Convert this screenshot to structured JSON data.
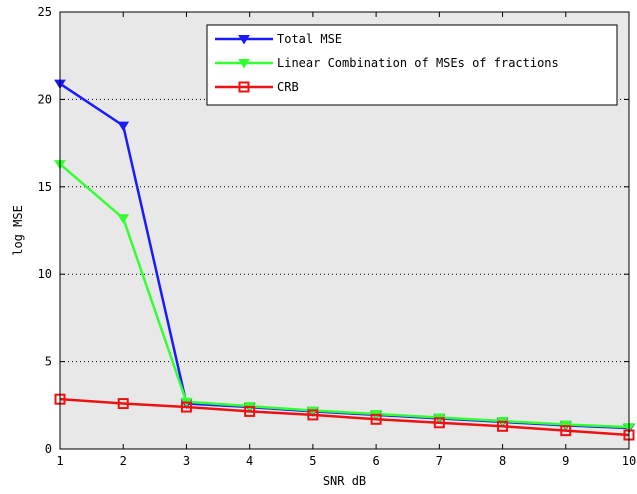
{
  "chart_data": {
    "type": "line",
    "title": "",
    "xlabel": "SNR dB",
    "ylabel": "log MSE",
    "xlim": [
      1,
      10
    ],
    "ylim": [
      0,
      25
    ],
    "xticks": [
      "1",
      "2",
      "3",
      "4",
      "5",
      "6",
      "7",
      "8",
      "9",
      "10"
    ],
    "yticks": [
      "0",
      "5",
      "10",
      "15",
      "20",
      "25"
    ],
    "grid": "horizontal-dotted",
    "legend_position": "top-right",
    "plot_background": "#e8e8e8",
    "x": [
      1,
      2,
      3,
      4,
      5,
      6,
      7,
      8,
      9,
      10
    ],
    "series": [
      {
        "name": "Total MSE",
        "color": "#1a1aff",
        "marker": "triangle-down",
        "values": [
          20.9,
          18.5,
          2.6,
          2.4,
          2.15,
          1.95,
          1.75,
          1.55,
          1.35,
          1.2
        ]
      },
      {
        "name": "Linear Combination of MSEs of fractions",
        "color": "#33ff33",
        "marker": "triangle-down",
        "values": [
          16.3,
          13.2,
          2.7,
          2.45,
          2.2,
          2.0,
          1.8,
          1.6,
          1.4,
          1.25
        ]
      },
      {
        "name": "CRB",
        "color": "#ee1111",
        "marker": "square",
        "values": [
          2.85,
          2.6,
          2.4,
          2.15,
          1.95,
          1.7,
          1.5,
          1.3,
          1.05,
          0.8
        ]
      }
    ]
  }
}
